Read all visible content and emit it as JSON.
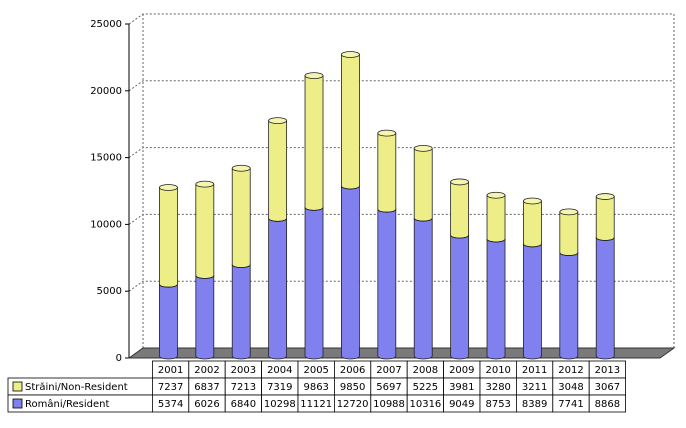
{
  "chart_data": {
    "type": "bar",
    "stacked": true,
    "categories": [
      "2001",
      "2002",
      "2003",
      "2004",
      "2005",
      "2006",
      "2007",
      "2008",
      "2009",
      "2010",
      "2011",
      "2012",
      "2013"
    ],
    "series": [
      {
        "name": "Români/Resident",
        "color": "#8080ee",
        "values": [
          5374,
          6026,
          6840,
          10298,
          11121,
          12720,
          10988,
          10316,
          9049,
          8753,
          8389,
          7741,
          8868
        ]
      },
      {
        "name": "Străini/Non-Resident",
        "color": "#eeee88",
        "values": [
          7237,
          6837,
          7213,
          7319,
          9863,
          9850,
          5697,
          5225,
          3981,
          3280,
          3211,
          3048,
          3067
        ]
      }
    ],
    "y_ticks": [
      "0",
      "5000",
      "10000",
      "15000",
      "20000",
      "25000"
    ],
    "ylim": [
      0,
      25000
    ],
    "grid": true,
    "legend": "data-table-below"
  }
}
